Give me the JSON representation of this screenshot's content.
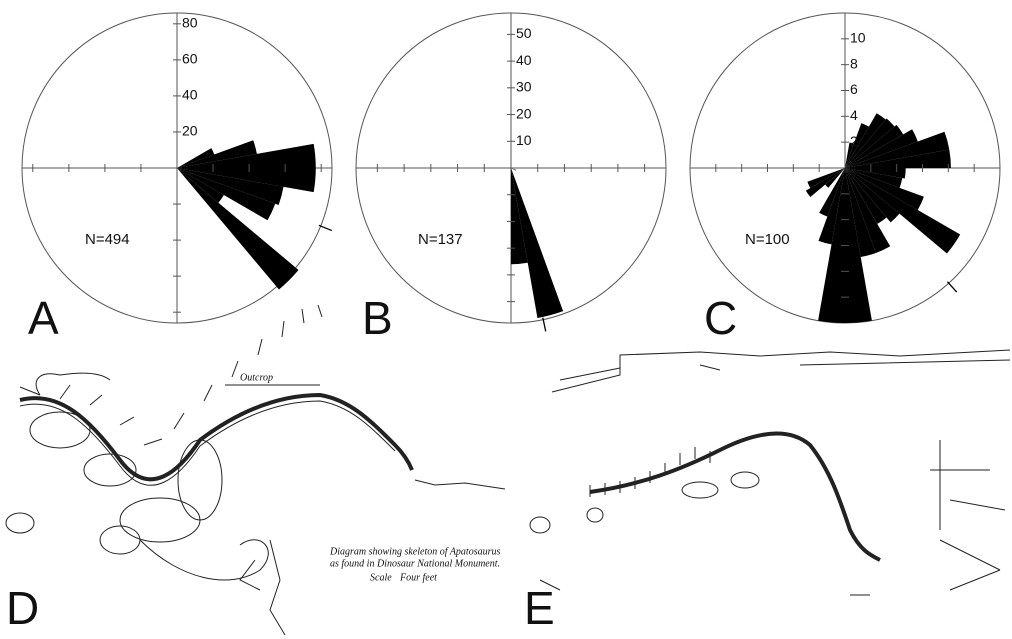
{
  "chart_data": [
    {
      "type": "rose",
      "label": "A",
      "annotation": "N=494",
      "color": "#000000",
      "bin_width": 10,
      "x": [
        60,
        70,
        80,
        90,
        100,
        110,
        120,
        130
      ],
      "values": [
        22,
        45,
        77,
        77,
        60,
        58,
        30,
        88
      ],
      "rlim": [
        0,
        86
      ],
      "rticks": [
        20,
        40,
        60,
        80
      ],
      "mean_azimuth": 112
    },
    {
      "type": "rose",
      "label": "B",
      "annotation": "N=137",
      "color": "#000000",
      "bin_width": 10,
      "x": [
        110,
        160,
        170
      ],
      "values": [
        2,
        57,
        36
      ],
      "rlim": [
        0,
        58
      ],
      "rticks": [
        10,
        20,
        30,
        40,
        50
      ],
      "mean_azimuth": 168
    },
    {
      "type": "rose",
      "label": "C",
      "annotation": "N=100",
      "color": "#000000",
      "bin_width": 10,
      "x": [
        10,
        20,
        30,
        40,
        50,
        60,
        70,
        80,
        90,
        100,
        110,
        120,
        130,
        140,
        150,
        160,
        170,
        180,
        190,
        200,
        220,
        230,
        240
      ],
      "values": [
        2,
        3.7,
        4.9,
        5,
        5.2,
        6,
        8.2,
        8.2,
        4.7,
        4.5,
        6.5,
        10.3,
        5.5,
        5,
        7,
        7,
        12,
        12,
        6,
        4,
        2,
        3.5,
        3.1
      ],
      "rlim": [
        0,
        12
      ],
      "rticks": [
        2,
        4,
        6,
        8,
        10
      ],
      "mean_azimuth": 138
    }
  ],
  "panels": [
    "D",
    "E"
  ],
  "drawing_texts": {
    "outcrop": "Outcrop",
    "caption_1": "Diagram showing skeleton of Apatosaurus",
    "caption_2": "as found in Dinosaur National Monument.",
    "scale": "Scale",
    "scale_unit": "Four feet"
  }
}
